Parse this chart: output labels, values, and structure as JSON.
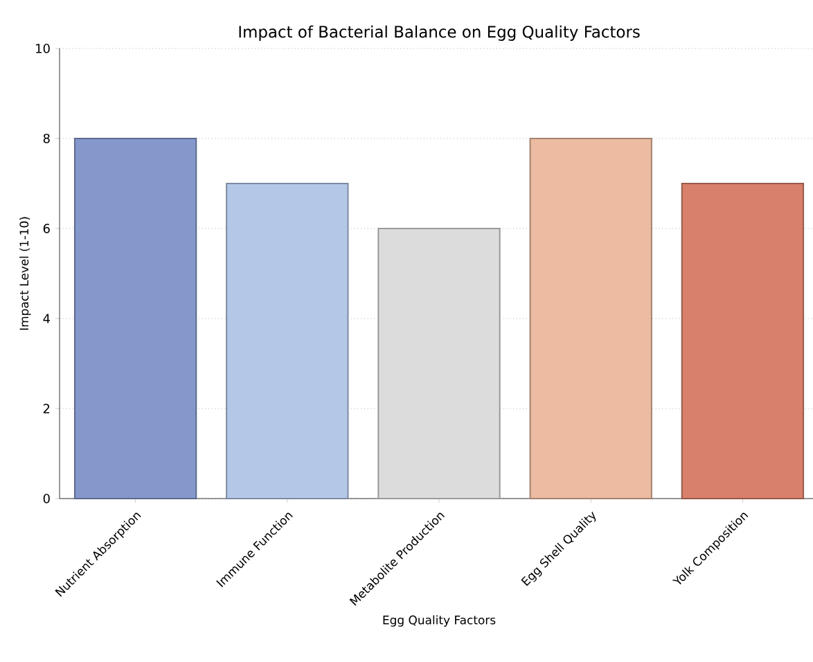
{
  "chart_data": {
    "type": "bar",
    "title": "Impact of Bacterial Balance on Egg Quality Factors",
    "xlabel": "Egg Quality Factors",
    "ylabel": "Impact Level (1-10)",
    "categories": [
      "Nutrient Absorption",
      "Immune Function",
      "Metabolite Production",
      "Egg Shell Quality",
      "Yolk Composition"
    ],
    "values": [
      8,
      7,
      6,
      8,
      7
    ],
    "colors": [
      "#8598cc",
      "#b4c7e7",
      "#dcdcdc",
      "#ecbba1",
      "#d8806b"
    ],
    "ylim": [
      0,
      10
    ],
    "yticks": [
      0,
      2,
      4,
      6,
      8,
      10
    ],
    "grid": "y"
  }
}
